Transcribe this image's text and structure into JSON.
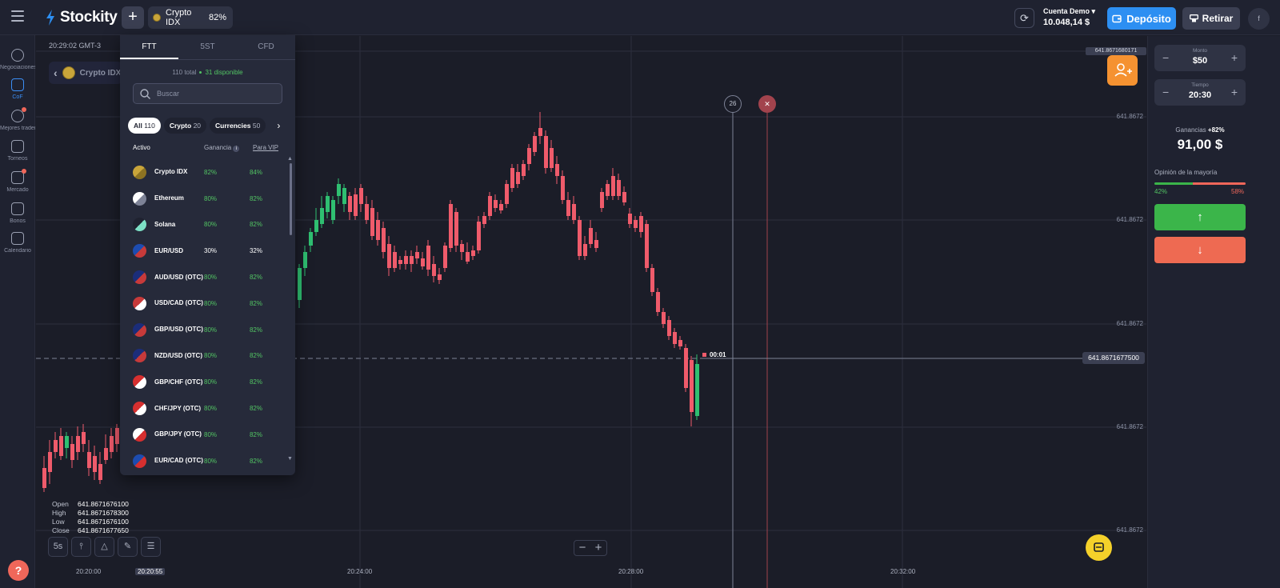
{
  "header": {
    "logo_text": "Stockity",
    "add_asset_label": "+",
    "asset_tab": {
      "name": "Crypto IDX",
      "payout": "82%"
    },
    "account": {
      "type": "Cuenta Demo",
      "balance": "10.048,14 $"
    },
    "deposit_label": "Depósito",
    "withdraw_label": "Retirar",
    "avatar_letter": "f",
    "colors": {
      "deposit": "#2d8ff2",
      "brand": "#2d8ff2"
    }
  },
  "sidebar": {
    "items": [
      {
        "label": "Negociaciones",
        "icon": "clock-icon",
        "active": false
      },
      {
        "label": "CoF",
        "icon": "cards-icon",
        "active": true
      },
      {
        "label": "Mejores traders",
        "icon": "medal-icon",
        "active": false,
        "dot": true
      },
      {
        "label": "Torneos",
        "icon": "trophy-icon",
        "active": false
      },
      {
        "label": "Mercado",
        "icon": "shop-bag-icon",
        "active": false,
        "dot": true
      },
      {
        "label": "Bonos",
        "icon": "gift-icon",
        "active": false
      },
      {
        "label": "Calendario",
        "icon": "calendar-icon",
        "active": false
      }
    ],
    "help_label": "?"
  },
  "chart": {
    "server_time": "20:29:02 GMT-3",
    "back_asset_label": "Crypto IDX",
    "price_ticks": [
      "641.8672",
      "641.8672",
      "641.8672",
      "641.8672",
      "641.8672"
    ],
    "top_price": "641.8671680171",
    "current_price": "641.8671677500",
    "countdown": "00:01",
    "time_marker_gray": "26",
    "time_marker_red": "✕",
    "time_labels": [
      "20:20:00",
      "20:20:55",
      "20:24:00",
      "20:28:00",
      "20:32:00"
    ],
    "ohlc": {
      "open": {
        "label": "Open",
        "value": "641.8671676100"
      },
      "high": {
        "label": "High",
        "value": "641.8671678300"
      },
      "low": {
        "label": "Low",
        "value": "641.8671676100"
      },
      "close": {
        "label": "Close",
        "value": "641.8671677650"
      }
    },
    "tools": {
      "timeframe": "5s"
    },
    "colors": {
      "bull": "#2fbf71",
      "bear": "#ef5b6b",
      "grid": "#2c2f3e"
    }
  },
  "asset_panel": {
    "tabs": [
      {
        "label": "FTT",
        "active": true
      },
      {
        "label": "5ST",
        "active": false
      },
      {
        "label": "CFD",
        "active": false
      }
    ],
    "total": "110 total",
    "available": "31 disponible",
    "search_placeholder": "Buscar",
    "filters": [
      {
        "label": "All",
        "count": "110",
        "active": true
      },
      {
        "label": "Crypto",
        "count": "20",
        "active": false
      },
      {
        "label": "Currencies",
        "count": "50",
        "active": false
      }
    ],
    "columns": {
      "asset": "Activo",
      "gain": "Ganancia",
      "vip": "Para VIP"
    },
    "assets": [
      {
        "name": "Crypto IDX",
        "gain": "82%",
        "vip": "84%",
        "flag": "crypto-idx-icon"
      },
      {
        "name": "Ethereum",
        "gain": "80%",
        "vip": "82%",
        "flag": "ethereum-icon"
      },
      {
        "name": "Solana",
        "gain": "80%",
        "vip": "82%",
        "flag": "solana-icon"
      },
      {
        "name": "EUR/USD",
        "gain": "30%",
        "vip": "32%",
        "flag": "eu-us-flag-icon",
        "dim": true
      },
      {
        "name": "AUD/USD (OTC)",
        "gain": "80%",
        "vip": "82%",
        "flag": "au-us-flag-icon"
      },
      {
        "name": "USD/CAD (OTC)",
        "gain": "80%",
        "vip": "82%",
        "flag": "us-ca-flag-icon"
      },
      {
        "name": "GBP/USD (OTC)",
        "gain": "80%",
        "vip": "82%",
        "flag": "gb-us-flag-icon"
      },
      {
        "name": "NZD/USD (OTC)",
        "gain": "80%",
        "vip": "82%",
        "flag": "nz-us-flag-icon"
      },
      {
        "name": "GBP/CHF (OTC)",
        "gain": "80%",
        "vip": "82%",
        "flag": "gb-ch-flag-icon"
      },
      {
        "name": "CHF/JPY (OTC)",
        "gain": "80%",
        "vip": "82%",
        "flag": "ch-jp-flag-icon"
      },
      {
        "name": "GBP/JPY (OTC)",
        "gain": "80%",
        "vip": "82%",
        "flag": "gb-jp-flag-icon"
      },
      {
        "name": "EUR/CAD (OTC)",
        "gain": "80%",
        "vip": "82%",
        "flag": "eu-ca-flag-icon"
      }
    ]
  },
  "trade_panel": {
    "amount": {
      "label": "Monto",
      "value": "$50"
    },
    "time": {
      "label": "Tiempo",
      "value": "20:30"
    },
    "gain_label": "Ganancias",
    "gain_pct": "+82%",
    "gain_amount": "91,00 $",
    "sentiment_label": "Opinión de la mayoría",
    "sentiment_up": "42%",
    "sentiment_down": "58%",
    "sentiment_up_fraction": 0.42,
    "up_label": "↑",
    "down_label": "↓",
    "colors": {
      "up": "#3bb54a",
      "down": "#ee6a52"
    }
  }
}
